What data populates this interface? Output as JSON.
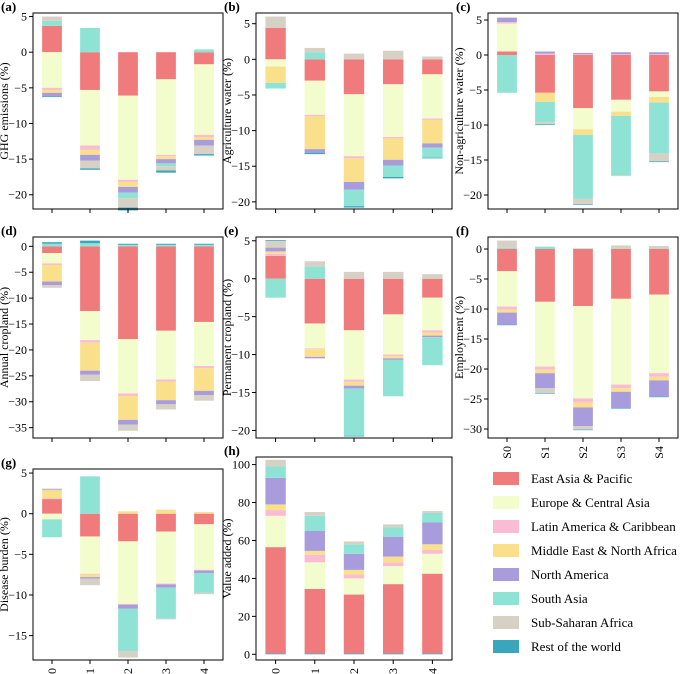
{
  "categories": [
    "S0",
    "S1",
    "S2",
    "S3",
    "S4"
  ],
  "legend": [
    {
      "key": "eap",
      "label": "East Asia & Pacific",
      "color": "#f07b7c"
    },
    {
      "key": "eca",
      "label": "Europe & Central Asia",
      "color": "#f3fccc"
    },
    {
      "key": "lac",
      "label": "Latin America & Caribbean",
      "color": "#f9bcd3"
    },
    {
      "key": "mena",
      "label": "Middle East & North Africa",
      "color": "#fbe08c"
    },
    {
      "key": "na",
      "label": "North America",
      "color": "#a99cdc"
    },
    {
      "key": "sa",
      "label": "South Asia",
      "color": "#8fe3d5"
    },
    {
      "key": "ssa",
      "label": "Sub-Saharan Africa",
      "color": "#d6d0c5"
    },
    {
      "key": "row",
      "label": "Rest of the world",
      "color": "#3aa6bd"
    }
  ],
  "chart_data": [
    {
      "type": "bar",
      "panel": "(a)",
      "ylabel": "GHG emissions (%)",
      "ylim": [
        -22,
        5.5
      ],
      "yticks": [
        5,
        0,
        -5,
        -10,
        -15,
        -20
      ],
      "categories": [
        "S0",
        "S1",
        "S2",
        "S3",
        "S4"
      ],
      "series": [
        {
          "key": "eap",
          "values": [
            3.7,
            -5.3,
            -6.1,
            -3.8,
            -1.7
          ]
        },
        {
          "key": "eca",
          "values": [
            -5.0,
            -7.8,
            -11.8,
            -10.6,
            -9.9
          ]
        },
        {
          "key": "lac",
          "values": [
            -0.3,
            -0.6,
            -0.3,
            -0.2,
            -0.3
          ]
        },
        {
          "key": "mena",
          "values": [
            -0.4,
            -0.7,
            -0.7,
            -0.4,
            -0.4
          ]
        },
        {
          "key": "na",
          "values": [
            -0.5,
            -0.8,
            -0.8,
            -0.6,
            -0.8
          ]
        },
        {
          "key": "sa",
          "values": [
            0.7,
            3.4,
            -0.8,
            -0.4,
            0.4
          ]
        },
        {
          "key": "ssa",
          "values": [
            0.6,
            -1.1,
            -1.3,
            -0.6,
            -1.2
          ]
        },
        {
          "key": "row",
          "values": [
            -0.1,
            -0.2,
            -0.4,
            -0.3,
            -0.2
          ]
        }
      ]
    },
    {
      "type": "bar",
      "panel": "(b)",
      "ylabel": "Agriculture water (%)",
      "ylim": [
        -21,
        6.5
      ],
      "yticks": [
        5,
        0,
        -5,
        -10,
        -15,
        -20
      ],
      "categories": [
        "S0",
        "S1",
        "S2",
        "S3",
        "S4"
      ],
      "series": [
        {
          "key": "eap",
          "values": [
            4.4,
            -3.0,
            -4.9,
            -3.5,
            -2.1
          ]
        },
        {
          "key": "eca",
          "values": [
            -1.0,
            -4.8,
            -8.7,
            -7.4,
            -6.2
          ]
        },
        {
          "key": "lac",
          "values": [
            0,
            -0.2,
            -0.3,
            -0.2,
            -0.2
          ]
        },
        {
          "key": "mena",
          "values": [
            -2.3,
            -4.6,
            -3.3,
            -3.0,
            -3.3
          ]
        },
        {
          "key": "na",
          "values": [
            0,
            -0.5,
            -1.1,
            -0.8,
            -0.6
          ]
        },
        {
          "key": "sa",
          "values": [
            -0.8,
            1.0,
            -2.3,
            -1.6,
            -1.4
          ]
        },
        {
          "key": "ssa",
          "values": [
            1.6,
            0.6,
            0.8,
            1.2,
            0.4
          ]
        },
        {
          "key": "row",
          "values": [
            0,
            -0.2,
            -0.2,
            -0.2,
            -0.1
          ]
        }
      ]
    },
    {
      "type": "bar",
      "panel": "(c)",
      "ylabel": "Non-agriculture water (%)",
      "ylim": [
        -22,
        6
      ],
      "yticks": [
        5,
        0,
        -5,
        -10,
        -15,
        -20
      ],
      "categories": [
        "S0",
        "S1",
        "S2",
        "S3",
        "S4"
      ],
      "series": [
        {
          "key": "eap",
          "values": [
            0.5,
            -5.4,
            -7.6,
            -6.4,
            -5.2
          ]
        },
        {
          "key": "eca",
          "values": [
            4.0,
            0,
            -3.0,
            -1.7,
            -0.8
          ]
        },
        {
          "key": "lac",
          "values": [
            0.2,
            0.2,
            0.1,
            0.1,
            0.1
          ]
        },
        {
          "key": "mena",
          "values": [
            0,
            -1.3,
            -0.8,
            -0.6,
            -0.8
          ]
        },
        {
          "key": "na",
          "values": [
            0.6,
            0.3,
            0.2,
            0.3,
            0.3
          ]
        },
        {
          "key": "sa",
          "values": [
            -5.4,
            -2.9,
            -9.1,
            -8.5,
            -7.3
          ]
        },
        {
          "key": "ssa",
          "values": [
            0.1,
            -0.3,
            -0.8,
            -0.1,
            -1.1
          ]
        },
        {
          "key": "row",
          "values": [
            0,
            -0.1,
            -0.1,
            0,
            -0.1
          ]
        }
      ]
    },
    {
      "type": "bar",
      "panel": "(d)",
      "ylabel": "Annual cropland (%)",
      "ylim": [
        -37,
        1.8
      ],
      "yticks": [
        0,
        -5,
        -10,
        -15,
        -20,
        -25,
        -30,
        -35
      ],
      "categories": [
        "S0",
        "S1",
        "S2",
        "S3",
        "S4"
      ],
      "series": [
        {
          "key": "eap",
          "values": [
            -1.3,
            -12.5,
            -17.9,
            -16.3,
            -14.6
          ]
        },
        {
          "key": "eca",
          "values": [
            -2.0,
            -5.6,
            -10.5,
            -9.4,
            -8.5
          ]
        },
        {
          "key": "lac",
          "values": [
            -0.3,
            -0.5,
            -0.5,
            -0.4,
            -0.4
          ]
        },
        {
          "key": "mena",
          "values": [
            -3.2,
            -5.4,
            -4.6,
            -3.6,
            -4.4
          ]
        },
        {
          "key": "na",
          "values": [
            -0.7,
            -0.8,
            -0.9,
            -0.8,
            -0.8
          ]
        },
        {
          "key": "sa",
          "values": [
            0.5,
            0.6,
            0.3,
            0.3,
            0.3
          ]
        },
        {
          "key": "ssa",
          "values": [
            -0.5,
            -1.2,
            -1.2,
            -1.0,
            -1.1
          ]
        },
        {
          "key": "row",
          "values": [
            0.3,
            0.5,
            0.2,
            0.2,
            0.2
          ]
        }
      ]
    },
    {
      "type": "bar",
      "panel": "(e)",
      "ylabel": "Permanent cropland (%)",
      "ylim": [
        -21,
        5.5
      ],
      "yticks": [
        5,
        0,
        -5,
        -10,
        -15,
        -20
      ],
      "categories": [
        "S0",
        "S1",
        "S2",
        "S3",
        "S4"
      ],
      "series": [
        {
          "key": "eap",
          "values": [
            3.0,
            -5.9,
            -6.8,
            -4.7,
            -2.5
          ]
        },
        {
          "key": "eca",
          "values": [
            0,
            -3.3,
            -6.5,
            -5.3,
            -4.3
          ]
        },
        {
          "key": "lac",
          "values": [
            0.3,
            -0.1,
            -0.3,
            -0.2,
            -0.3
          ]
        },
        {
          "key": "mena",
          "values": [
            0.3,
            -1.0,
            -0.5,
            -0.3,
            -0.4
          ]
        },
        {
          "key": "na",
          "values": [
            0.5,
            -0.2,
            -0.4,
            -0.2,
            -0.2
          ]
        },
        {
          "key": "sa",
          "values": [
            -2.5,
            1.6,
            -6.2,
            -4.8,
            -3.7
          ]
        },
        {
          "key": "ssa",
          "values": [
            0.9,
            0.7,
            0.9,
            0.9,
            0.6
          ]
        },
        {
          "key": "row",
          "values": [
            0.1,
            0,
            -0.1,
            0,
            0
          ]
        }
      ]
    },
    {
      "type": "bar",
      "panel": "(f)",
      "ylabel": "Employment (%)",
      "ylim": [
        -31.5,
        2
      ],
      "yticks": [
        0,
        -5,
        -10,
        -15,
        -20,
        -25,
        -30
      ],
      "categories": [
        "S0",
        "S1",
        "S2",
        "S3",
        "S4"
      ],
      "series": [
        {
          "key": "eap",
          "values": [
            -3.7,
            -8.8,
            -9.5,
            -8.3,
            -7.6
          ]
        },
        {
          "key": "eca",
          "values": [
            -5.9,
            -10.8,
            -15.4,
            -14.3,
            -13.1
          ]
        },
        {
          "key": "lac",
          "values": [
            -0.5,
            -0.5,
            -0.7,
            -0.6,
            -0.6
          ]
        },
        {
          "key": "mena",
          "values": [
            -0.5,
            -0.6,
            -0.8,
            -0.6,
            -0.6
          ]
        },
        {
          "key": "na",
          "values": [
            -2.0,
            -2.5,
            -3.1,
            -2.7,
            -2.7
          ]
        },
        {
          "key": "sa",
          "values": [
            0.2,
            0.4,
            0.1,
            0.1,
            0.1
          ]
        },
        {
          "key": "ssa",
          "values": [
            1.2,
            -0.8,
            -0.6,
            0.5,
            0.4
          ]
        },
        {
          "key": "row",
          "values": [
            -0.1,
            -0.1,
            -0.1,
            -0.1,
            -0.1
          ]
        }
      ]
    },
    {
      "type": "bar",
      "panel": "(g)",
      "ylabel": "Disease burden (%)",
      "ylim": [
        -18,
        5.5
      ],
      "yticks": [
        5,
        0,
        -5,
        -10,
        -15
      ],
      "categories": [
        "S0",
        "S1",
        "S2",
        "S3",
        "S4"
      ],
      "series": [
        {
          "key": "eap",
          "values": [
            1.8,
            -2.8,
            -3.4,
            -2.2,
            -1.3
          ]
        },
        {
          "key": "eca",
          "values": [
            -0.7,
            -4.6,
            -7.7,
            -6.4,
            -5.6
          ]
        },
        {
          "key": "lac",
          "values": [
            0.1,
            -0.1,
            -0.1,
            -0.1,
            -0.1
          ]
        },
        {
          "key": "mena",
          "values": [
            1.0,
            -0.3,
            0.3,
            0.5,
            0.2
          ]
        },
        {
          "key": "na",
          "values": [
            0.1,
            -0.2,
            -0.5,
            -0.4,
            -0.3
          ]
        },
        {
          "key": "sa",
          "values": [
            -2.2,
            4.6,
            -5.2,
            -3.8,
            -2.4
          ]
        },
        {
          "key": "ssa",
          "values": [
            0.1,
            -0.8,
            -0.8,
            -0.1,
            -0.2
          ]
        },
        {
          "key": "row",
          "values": [
            0,
            0,
            0,
            0,
            0
          ]
        }
      ]
    },
    {
      "type": "bar",
      "panel": "(h)",
      "ylabel": "Value added (%)",
      "ylim": [
        -3,
        104
      ],
      "yticks": [
        0,
        20,
        40,
        60,
        80,
        100
      ],
      "categories": [
        "S0",
        "S1",
        "S2",
        "S3",
        "S4"
      ],
      "series": [
        {
          "key": "row",
          "values": [
            0.5,
            0.5,
            0.5,
            0.5,
            0.5
          ]
        },
        {
          "key": "eap",
          "values": [
            56.0,
            34.0,
            31.0,
            36.5,
            42.0
          ]
        },
        {
          "key": "eca",
          "values": [
            16.5,
            14.0,
            8.5,
            9.5,
            10.5
          ]
        },
        {
          "key": "lac",
          "values": [
            3.0,
            4.0,
            2.0,
            2.0,
            2.0
          ]
        },
        {
          "key": "mena",
          "values": [
            3.0,
            2.0,
            2.5,
            3.0,
            3.0
          ]
        },
        {
          "key": "na",
          "values": [
            14.0,
            10.5,
            8.5,
            10.5,
            11.5
          ]
        },
        {
          "key": "sa",
          "values": [
            6.0,
            8.0,
            5.0,
            5.0,
            5.0
          ]
        },
        {
          "key": "ssa",
          "values": [
            3.5,
            2.0,
            1.5,
            1.5,
            1.0
          ]
        }
      ]
    }
  ]
}
